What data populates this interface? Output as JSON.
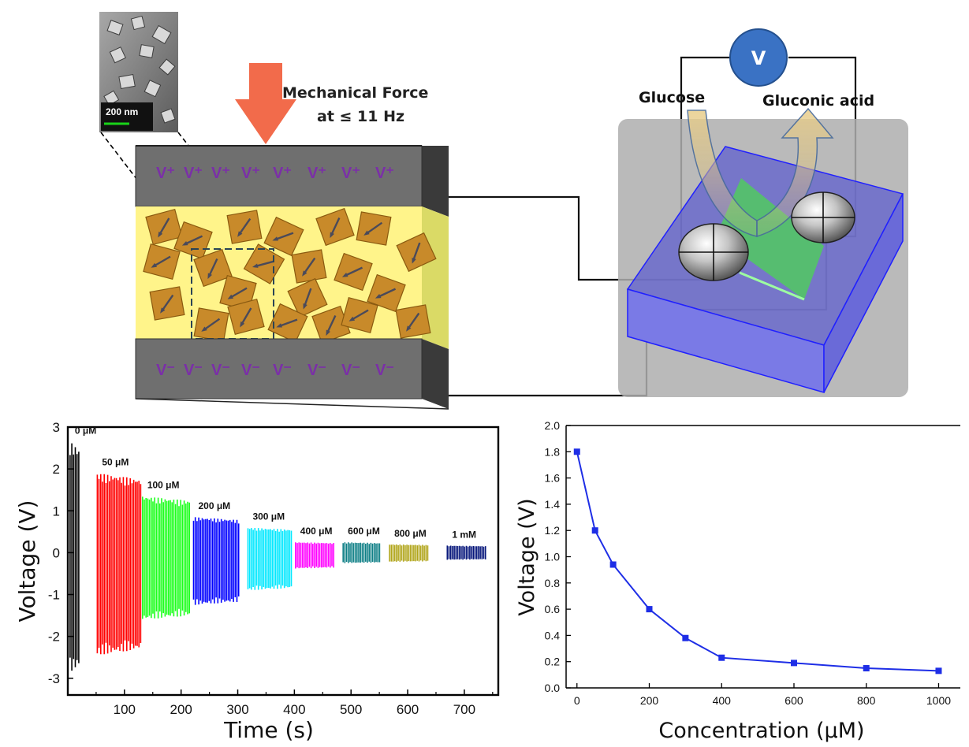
{
  "sem_image": {
    "scale_label": "200 nm"
  },
  "force": {
    "line1": "Mechanical Force",
    "line2": "at ≤ 11 Hz"
  },
  "charges": {
    "positive": "V⁺",
    "negative": "V⁻"
  },
  "sensor": {
    "meter_label": "V",
    "glucose_label": "Glucose",
    "gluconic_label": "Gluconic acid"
  },
  "colors": {
    "force_arrow": "#f26b4b",
    "plate": "#6f6f6f",
    "charge_text": "#7b2fa8",
    "film": "#fff48a",
    "crystal": "#c88a2a",
    "substrate": "#5a5ad0",
    "meter": "#3a72c4",
    "series_line": "#1e2ee6"
  },
  "chart_data": [
    {
      "type": "line",
      "xlabel": "Time (s)",
      "ylabel": "Voltage (V)",
      "xlim": [
        0,
        760
      ],
      "ylim": [
        -3.4,
        3
      ],
      "xticks": [
        100,
        200,
        300,
        400,
        500,
        600,
        700
      ],
      "yticks": [
        -3,
        -2,
        -1,
        0,
        1,
        2,
        3
      ],
      "series": [
        {
          "name": "0 μM",
          "label_text": "0 μM",
          "x": [
            4,
            22
          ],
          "min": -2.85,
          "max": 2.65,
          "color": "#000000"
        },
        {
          "name": "50 μM",
          "label_text": "50 μM",
          "x": [
            52,
            130
          ],
          "min": -2.45,
          "max": 1.9,
          "color": "#ff0000"
        },
        {
          "name": "100 μM",
          "label_text": "100 μM",
          "x": [
            132,
            215
          ],
          "min": -1.6,
          "max": 1.35,
          "color": "#1bff1b"
        },
        {
          "name": "200 μM",
          "label_text": "200 μM",
          "x": [
            222,
            302
          ],
          "min": -1.25,
          "max": 0.85,
          "color": "#0000ff"
        },
        {
          "name": "300 μM",
          "label_text": "300 μM",
          "x": [
            318,
            395
          ],
          "min": -0.9,
          "max": 0.6,
          "color": "#00e8ff"
        },
        {
          "name": "400 μM",
          "label_text": "400 μM",
          "x": [
            402,
            472
          ],
          "min": -0.38,
          "max": 0.25,
          "color": "#ff00ff"
        },
        {
          "name": "600 μM",
          "label_text": "600 μM",
          "x": [
            486,
            552
          ],
          "min": -0.25,
          "max": 0.25,
          "color": "#0e7f86"
        },
        {
          "name": "800 μM",
          "label_text": "800 μM",
          "x": [
            568,
            636
          ],
          "min": -0.22,
          "max": 0.2,
          "color": "#b1a51a"
        },
        {
          "name": "1 mM",
          "label_text": "1 mM",
          "x": [
            670,
            740
          ],
          "min": -0.17,
          "max": 0.17,
          "color": "#05157a"
        }
      ]
    },
    {
      "type": "line",
      "xlabel": "Concentration (μM)",
      "ylabel": "Voltage (V)",
      "xlim": [
        -30,
        1060
      ],
      "ylim": [
        0,
        2.0
      ],
      "xticks": [
        0,
        200,
        400,
        600,
        800,
        1000
      ],
      "yticks": [
        "0.0",
        "0.2",
        "0.4",
        "0.6",
        "0.8",
        "1.0",
        "1.2",
        "1.4",
        "1.6",
        "1.8",
        "2.0"
      ],
      "x": [
        0,
        50,
        100,
        200,
        300,
        400,
        600,
        800,
        1000
      ],
      "y": [
        1.8,
        1.2,
        0.94,
        0.6,
        0.38,
        0.23,
        0.19,
        0.15,
        0.13
      ]
    }
  ]
}
